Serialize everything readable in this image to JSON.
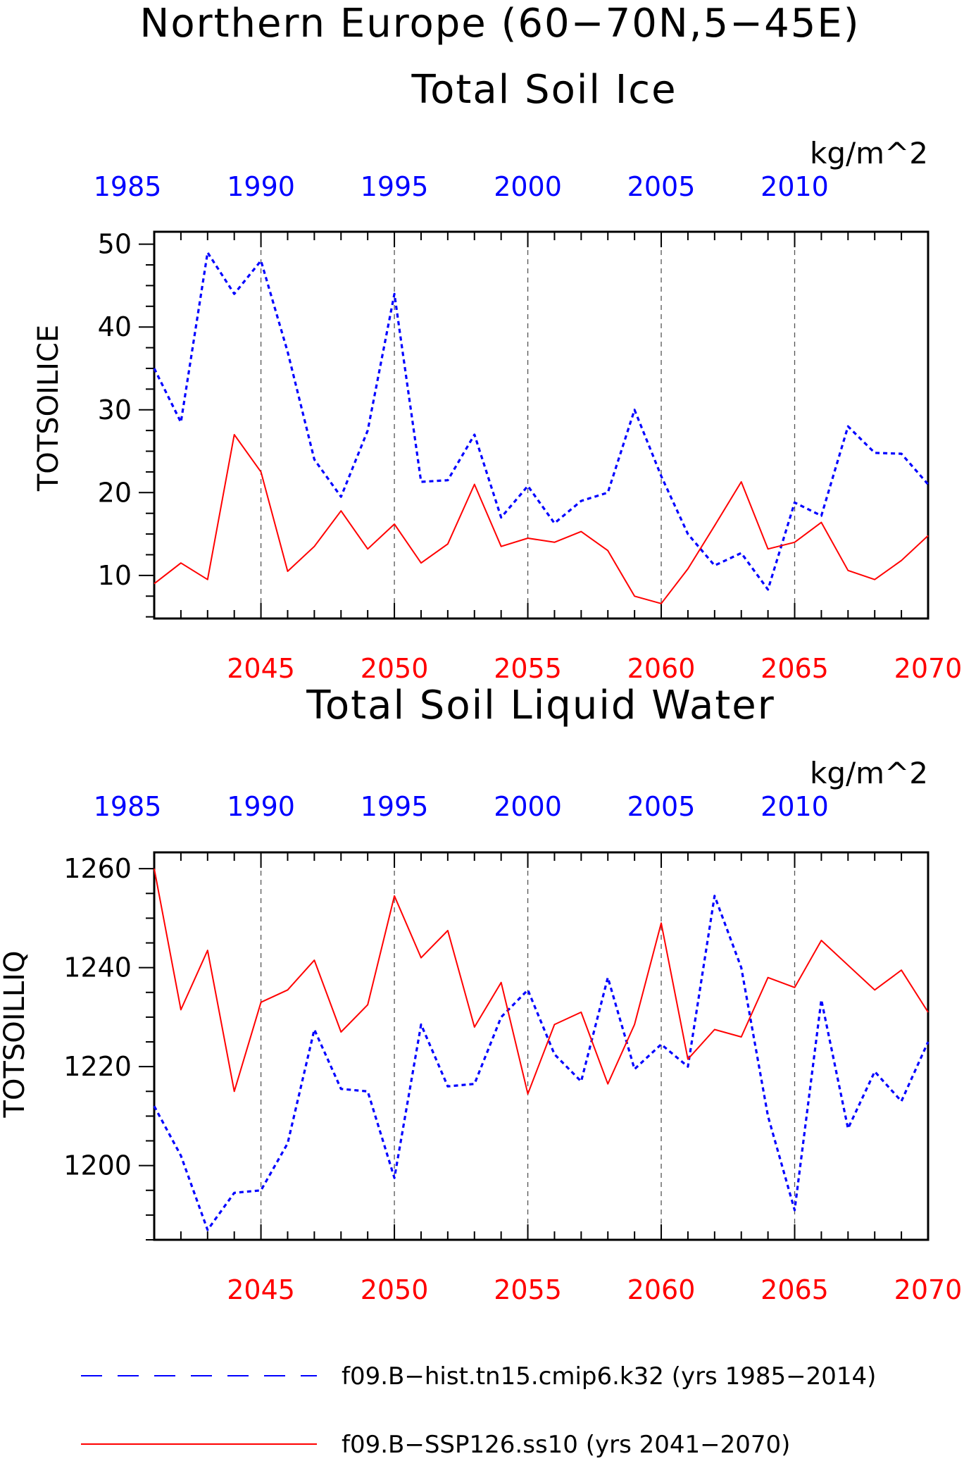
{
  "figure": {
    "title_line1": "Northern Europe (60−70N,5−45E)",
    "colors": {
      "hist": "#0000ff",
      "future": "#ff0000",
      "axis": "#000000"
    }
  },
  "legend": [
    {
      "label": "f09.B−hist.tn15.cmip6.k32 (yrs 1985−2014)",
      "color": "#0000ff",
      "style": "dashed"
    },
    {
      "label": "f09.B−SSP126.ss10 (yrs 2041−2070)",
      "color": "#ff0000",
      "style": "solid"
    }
  ],
  "chart_data": [
    {
      "type": "line",
      "title": "Total Soil Ice",
      "ylabel": "TOTSOILICE",
      "units": "kg/m^2",
      "ylim": [
        4.8,
        51.5
      ],
      "yticks": [
        10,
        20,
        30,
        40,
        50
      ],
      "top_axis": {
        "color": "#0000ff",
        "ticks": [
          "1985",
          "1990",
          "1995",
          "2000",
          "2005",
          "2010"
        ]
      },
      "bottom_axis": {
        "color": "#ff0000",
        "ticks": [
          "2045",
          "2050",
          "2055",
          "2060",
          "2065",
          "2070"
        ]
      },
      "x_future_range": [
        2041,
        2070
      ],
      "grid": "dashed vertical lines at labeled years",
      "series": [
        {
          "name": "f09.B−hist.tn15.cmip6.k32 (yrs 1985−2014)",
          "style": "dashed",
          "color": "#0000ff",
          "x": [
            1985,
            1986,
            1987,
            1988,
            1989,
            1990,
            1991,
            1992,
            1993,
            1994,
            1995,
            1996,
            1997,
            1998,
            1999,
            2000,
            2001,
            2002,
            2003,
            2004,
            2005,
            2006,
            2007,
            2008,
            2009,
            2010,
            2011,
            2012,
            2013,
            2014
          ],
          "values": [
            35,
            28.5,
            49,
            44,
            48,
            37,
            24,
            19.5,
            27.5,
            44,
            21.3,
            21.5,
            27,
            17,
            20.8,
            16.3,
            19,
            20,
            30,
            22,
            15,
            11.2,
            12.7,
            8.3,
            18.8,
            17.2,
            28,
            24.8,
            24.7,
            21
          ]
        },
        {
          "name": "f09.B−SSP126.ss10 (yrs 2041−2070)",
          "style": "solid",
          "color": "#ff0000",
          "x": [
            2041,
            2042,
            2043,
            2044,
            2045,
            2046,
            2047,
            2048,
            2049,
            2050,
            2051,
            2052,
            2053,
            2054,
            2055,
            2056,
            2057,
            2058,
            2059,
            2060,
            2061,
            2062,
            2063,
            2064,
            2065,
            2066,
            2067,
            2068,
            2069,
            2070
          ],
          "values": [
            9,
            11.5,
            9.5,
            27,
            22.5,
            10.5,
            13.5,
            17.8,
            13.2,
            16.2,
            11.5,
            13.8,
            21,
            13.5,
            14.5,
            14,
            15.3,
            13,
            7.5,
            6.6,
            10.8,
            16,
            21.3,
            13.2,
            14,
            16.4,
            10.6,
            9.5,
            11.8,
            14.8
          ]
        }
      ]
    },
    {
      "type": "line",
      "title": "Total Soil Liquid Water",
      "ylabel": "TOTSOILLIQ",
      "units": "kg/m^2",
      "ylim": [
        1185,
        1263.3
      ],
      "yticks": [
        1200,
        1220,
        1240,
        1260
      ],
      "top_axis": {
        "color": "#0000ff",
        "ticks": [
          "1985",
          "1990",
          "1995",
          "2000",
          "2005",
          "2010"
        ]
      },
      "bottom_axis": {
        "color": "#ff0000",
        "ticks": [
          "2045",
          "2050",
          "2055",
          "2060",
          "2065",
          "2070"
        ]
      },
      "x_future_range": [
        2041,
        2070
      ],
      "grid": "dashed vertical lines at labeled years",
      "series": [
        {
          "name": "f09.B−hist.tn15.cmip6.k32 (yrs 1985−2014)",
          "style": "dashed",
          "color": "#0000ff",
          "x": [
            1985,
            1986,
            1987,
            1988,
            1989,
            1990,
            1991,
            1992,
            1993,
            1994,
            1995,
            1996,
            1997,
            1998,
            1999,
            2000,
            2001,
            2002,
            2003,
            2004,
            2005,
            2006,
            2007,
            2008,
            2009,
            2010,
            2011,
            2012,
            2013,
            2014
          ],
          "values": [
            1212,
            1202,
            1187,
            1194.5,
            1195,
            1204.5,
            1227.5,
            1215.5,
            1215,
            1197.5,
            1228.5,
            1216,
            1216.5,
            1230,
            1235.5,
            1222.5,
            1217,
            1238,
            1219.5,
            1224.5,
            1220,
            1254.5,
            1240,
            1210,
            1191,
            1233.5,
            1207.5,
            1219,
            1213,
            1225
          ]
        },
        {
          "name": "f09.B−SSP126.ss10 (yrs 2041−2070)",
          "style": "solid",
          "color": "#ff0000",
          "x": [
            2041,
            2042,
            2043,
            2044,
            2045,
            2046,
            2047,
            2048,
            2049,
            2050,
            2051,
            2052,
            2053,
            2054,
            2055,
            2056,
            2057,
            2058,
            2059,
            2060,
            2061,
            2062,
            2063,
            2064,
            2065,
            2066,
            2067,
            2068,
            2069,
            2070
          ],
          "values": [
            1260,
            1231.5,
            1243.5,
            1215,
            1233,
            1235.5,
            1241.5,
            1227,
            1232.5,
            1254.5,
            1242,
            1247.5,
            1228,
            1237,
            1214.5,
            1228.5,
            1231,
            1216.5,
            1228.5,
            1249,
            1221.5,
            1227.5,
            1226,
            1238,
            1236,
            1245.5,
            1240.5,
            1235.5,
            1239.5,
            1231
          ]
        }
      ]
    }
  ]
}
